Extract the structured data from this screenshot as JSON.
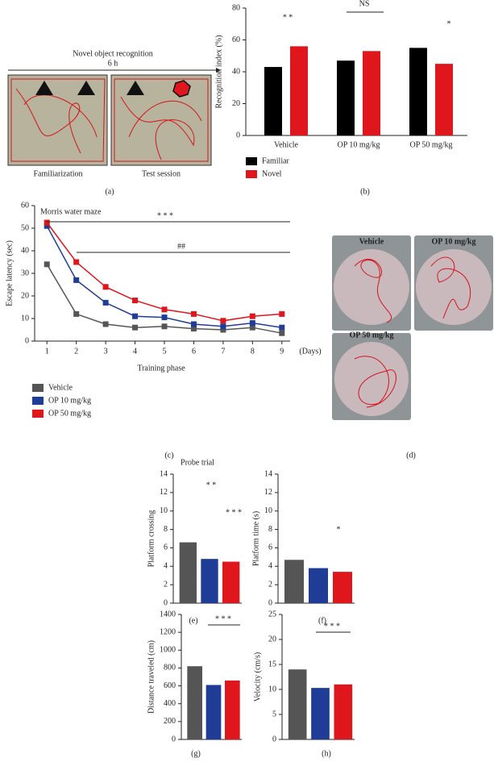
{
  "figure_a": {
    "title": "Novel object recognition",
    "interval": "6 h",
    "left_label": "Familiarization",
    "right_label": "Test session",
    "panel_label": "(a)"
  },
  "figure_d": {
    "labels": [
      "Vehicle",
      "OP 10 mg/kg",
      "OP 50 mg/kg"
    ],
    "panel_label": "(d)"
  },
  "chart_data": [
    {
      "type": "bar",
      "panel_label": "(b)",
      "y_label": "Recognition index (%)",
      "categories": [
        "Vehicle",
        "OP 10 mg/kg",
        "OP 50 mg/kg"
      ],
      "series": [
        {
          "name": "Familiar",
          "color": "#000000",
          "values": [
            43,
            47,
            55
          ]
        },
        {
          "name": "Novel",
          "color": "#e0161d",
          "values": [
            56,
            53,
            45
          ]
        }
      ],
      "ylim": [
        0,
        80
      ],
      "yticks": [
        0,
        20,
        40,
        60,
        80
      ],
      "annotations": [
        "* *",
        "NS",
        "*"
      ]
    },
    {
      "type": "line",
      "panel_label": "(c)",
      "title": "Morris water maze",
      "x_label": "Training phase",
      "x_unit": "(Days)",
      "y_label": "Escape latency (sec)",
      "x": [
        1,
        2,
        3,
        4,
        5,
        6,
        7,
        8,
        9
      ],
      "xlim": [
        0.5,
        9.5
      ],
      "xticks": [
        1,
        2,
        3,
        4,
        5,
        6,
        7,
        8,
        9
      ],
      "ylim": [
        0,
        60
      ],
      "yticks": [
        0,
        10,
        20,
        30,
        40,
        50,
        60
      ],
      "series": [
        {
          "name": "Vehicle",
          "color": "#555555",
          "values": [
            34,
            12,
            7.5,
            6,
            6.5,
            5.5,
            5,
            6,
            3.5
          ]
        },
        {
          "name": "OP 10 mg/kg",
          "color": "#1f3c96",
          "values": [
            51,
            27,
            17,
            11,
            10.5,
            7.5,
            6.5,
            8,
            6
          ]
        },
        {
          "name": "OP 50 mg/kg",
          "color": "#e0161d",
          "values": [
            52.5,
            35,
            24,
            18,
            14,
            12,
            9,
            11,
            12
          ]
        }
      ],
      "annotations": [
        "* * *",
        "##"
      ]
    },
    {
      "type": "bar",
      "panel_label": "(e)",
      "title": "Probe trial",
      "y_label": "Platform crossing",
      "categories": [
        null,
        null,
        null
      ],
      "values": [
        6.6,
        4.8,
        4.5
      ],
      "colors": [
        "#555555",
        "#1f3c96",
        "#e0161d"
      ],
      "ylim": [
        0,
        14
      ],
      "yticks": [
        0,
        2,
        4,
        6,
        8,
        10,
        12,
        14
      ],
      "annotations": [
        "* *",
        "* * *"
      ]
    },
    {
      "type": "bar",
      "panel_label": "(f)",
      "y_label": "Platform time (s)",
      "categories": [
        null,
        null,
        null
      ],
      "values": [
        4.7,
        3.8,
        3.4
      ],
      "colors": [
        "#555555",
        "#1f3c96",
        "#e0161d"
      ],
      "ylim": [
        0,
        14
      ],
      "yticks": [
        0,
        2,
        4,
        6,
        8,
        10,
        12,
        14
      ],
      "annotations": [
        "*"
      ]
    },
    {
      "type": "bar",
      "panel_label": "(g)",
      "y_label": "Distance traveled (cm)",
      "categories": [
        null,
        null,
        null
      ],
      "values": [
        820,
        610,
        660
      ],
      "colors": [
        "#555555",
        "#1f3c96",
        "#e0161d"
      ],
      "ylim": [
        0,
        1400
      ],
      "yticks": [
        0,
        200,
        400,
        600,
        800,
        1000,
        1200,
        1400
      ],
      "annotations": [
        "* * *"
      ]
    },
    {
      "type": "bar",
      "panel_label": "(h)",
      "y_label": "Velocity (cm/s)",
      "categories": [
        null,
        null,
        null
      ],
      "values": [
        14,
        10.3,
        11
      ],
      "colors": [
        "#555555",
        "#1f3c96",
        "#e0161d"
      ],
      "ylim": [
        0,
        25
      ],
      "yticks": [
        0,
        5,
        10,
        15,
        20,
        25
      ],
      "annotations": [
        "* * *"
      ]
    }
  ]
}
